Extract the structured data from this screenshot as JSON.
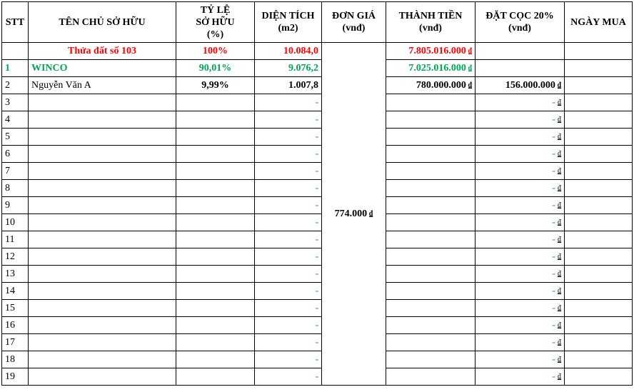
{
  "headers": {
    "stt": "STT",
    "owner": "TÊN CHỦ SỞ HỮU",
    "ratio_line1": "TỶ LỆ",
    "ratio_line2": "SỞ HỮU",
    "ratio_line3": "(%)",
    "area_line1": "DIỆN TÍCH",
    "area_line2": "(m2)",
    "price_line1": "ĐƠN GIÁ",
    "price_line2": "(vnđ)",
    "total_line1": "THÀNH TIỀN",
    "total_line2": "(vnđ)",
    "deposit_line1": "ĐẶT CỌC 20%",
    "deposit_line2": "(vnđ)",
    "date": "NGÀY MUA"
  },
  "currency_symbol": "₫",
  "unit_price": "774.000",
  "plot_row": {
    "name": "Thửa đất số 103",
    "ratio": "100%",
    "area": "10.084,0",
    "total": "7.805.016.000"
  },
  "rows": [
    {
      "stt": "1",
      "name": "WINCO",
      "ratio": "90,01%",
      "area": "9.076,2",
      "total": "7.025.016.000",
      "deposit": "",
      "date": ""
    },
    {
      "stt": "2",
      "name": "Nguyễn Văn A",
      "ratio": "9,99%",
      "area": "1.007,8",
      "total": "780.000.000",
      "deposit": "156.000.000",
      "date": ""
    },
    {
      "stt": "3",
      "name": "",
      "ratio": "",
      "area": "-",
      "total": "",
      "deposit": "-",
      "date": ""
    },
    {
      "stt": "4",
      "name": "",
      "ratio": "",
      "area": "-",
      "total": "",
      "deposit": "-",
      "date": ""
    },
    {
      "stt": "5",
      "name": "",
      "ratio": "",
      "area": "-",
      "total": "",
      "deposit": "-",
      "date": ""
    },
    {
      "stt": "6",
      "name": "",
      "ratio": "",
      "area": "-",
      "total": "",
      "deposit": "-",
      "date": ""
    },
    {
      "stt": "7",
      "name": "",
      "ratio": "",
      "area": "-",
      "total": "",
      "deposit": "-",
      "date": ""
    },
    {
      "stt": "8",
      "name": "",
      "ratio": "",
      "area": "-",
      "total": "",
      "deposit": "-",
      "date": ""
    },
    {
      "stt": "9",
      "name": "",
      "ratio": "",
      "area": "-",
      "total": "",
      "deposit": "-",
      "date": ""
    },
    {
      "stt": "10",
      "name": "",
      "ratio": "",
      "area": "-",
      "total": "",
      "deposit": "-",
      "date": ""
    },
    {
      "stt": "11",
      "name": "",
      "ratio": "",
      "area": "-",
      "total": "",
      "deposit": "-",
      "date": ""
    },
    {
      "stt": "12",
      "name": "",
      "ratio": "",
      "area": "-",
      "total": "",
      "deposit": "-",
      "date": ""
    },
    {
      "stt": "13",
      "name": "",
      "ratio": "",
      "area": "-",
      "total": "",
      "deposit": "-",
      "date": ""
    },
    {
      "stt": "14",
      "name": "",
      "ratio": "",
      "area": "-",
      "total": "",
      "deposit": "-",
      "date": ""
    },
    {
      "stt": "15",
      "name": "",
      "ratio": "",
      "area": "-",
      "total": "",
      "deposit": "-",
      "date": ""
    },
    {
      "stt": "16",
      "name": "",
      "ratio": "",
      "area": "-",
      "total": "",
      "deposit": "-",
      "date": ""
    },
    {
      "stt": "17",
      "name": "",
      "ratio": "",
      "area": "-",
      "total": "",
      "deposit": "-",
      "date": ""
    },
    {
      "stt": "18",
      "name": "",
      "ratio": "",
      "area": "-",
      "total": "",
      "deposit": "-",
      "date": ""
    },
    {
      "stt": "19",
      "name": "",
      "ratio": "",
      "area": "-",
      "total": "",
      "deposit": "-",
      "date": ""
    }
  ]
}
